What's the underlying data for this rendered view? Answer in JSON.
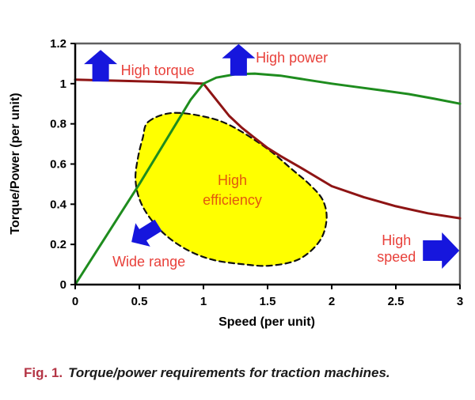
{
  "figure": {
    "caption_label": "Fig. 1.",
    "caption_text": "Torque/power requirements for traction machines."
  },
  "colors": {
    "torque_curve": "#8e1414",
    "power_curve": "#1e8c1e",
    "arrow_blue": "#1616dd",
    "label_red": "#e8403a",
    "efficiency_orange": "#e2580e",
    "region_yellow": "#ffff00",
    "region_outline": "#111111",
    "axis": "#000000",
    "frame": "#606060",
    "caption_red": "#b43545"
  },
  "chart_data": {
    "type": "line",
    "title": "",
    "xlabel": "Speed (per unit)",
    "ylabel": "Torque/Power (per unit)",
    "xlim": [
      0,
      3
    ],
    "ylim": [
      0,
      1.2
    ],
    "grid": false,
    "legend": "none",
    "xticks": [
      0,
      0.5,
      1,
      1.5,
      2,
      2.5,
      3
    ],
    "xtick_labels": [
      "0",
      "0.5",
      "1",
      "1.5",
      "2",
      "2.5",
      "3"
    ],
    "yticks": [
      0,
      0.2,
      0.4,
      0.6,
      0.8,
      1,
      1.2
    ],
    "ytick_labels": [
      "0",
      "0.2",
      "0.4",
      "0.6",
      "0.8",
      "1",
      "1.2"
    ],
    "series": [
      {
        "name": "torque",
        "color": "#8e1414",
        "points": [
          [
            0,
            1.02
          ],
          [
            0.3,
            1.015
          ],
          [
            0.6,
            1.01
          ],
          [
            0.85,
            1.005
          ],
          [
            1.0,
            1.0
          ],
          [
            1.1,
            0.92
          ],
          [
            1.2,
            0.84
          ],
          [
            1.3,
            0.78
          ],
          [
            1.4,
            0.73
          ],
          [
            1.5,
            0.68
          ],
          [
            1.6,
            0.64
          ],
          [
            1.75,
            0.585
          ],
          [
            2.0,
            0.49
          ],
          [
            2.25,
            0.435
          ],
          [
            2.5,
            0.39
          ],
          [
            2.75,
            0.355
          ],
          [
            3.0,
            0.33
          ]
        ]
      },
      {
        "name": "power",
        "color": "#1e8c1e",
        "points": [
          [
            0,
            0
          ],
          [
            0.5,
            0.5
          ],
          [
            0.9,
            0.92
          ],
          [
            1.0,
            1.0
          ],
          [
            1.1,
            1.03
          ],
          [
            1.25,
            1.047
          ],
          [
            1.4,
            1.05
          ],
          [
            1.6,
            1.04
          ],
          [
            1.8,
            1.02
          ],
          [
            2.0,
            1.0
          ],
          [
            2.2,
            0.983
          ],
          [
            2.4,
            0.966
          ],
          [
            2.6,
            0.948
          ],
          [
            2.8,
            0.925
          ],
          [
            3.0,
            0.9
          ]
        ]
      }
    ],
    "high_efficiency_region": {
      "fill": "#ffff00",
      "outline_unit_points": [
        [
          0.57,
          0.81
        ],
        [
          0.755,
          0.854
        ],
        [
          1.02,
          0.834
        ],
        [
          1.225,
          0.787
        ],
        [
          1.497,
          0.677
        ],
        [
          1.682,
          0.578
        ],
        [
          1.825,
          0.5
        ],
        [
          1.93,
          0.421
        ],
        [
          1.96,
          0.323
        ],
        [
          1.905,
          0.216
        ],
        [
          1.744,
          0.126
        ],
        [
          1.515,
          0.094
        ],
        [
          1.3,
          0.102
        ],
        [
          1.082,
          0.122
        ],
        [
          0.897,
          0.165
        ],
        [
          0.724,
          0.236
        ],
        [
          0.588,
          0.327
        ],
        [
          0.501,
          0.425
        ],
        [
          0.47,
          0.527
        ],
        [
          0.489,
          0.63
        ],
        [
          0.526,
          0.728
        ]
      ]
    },
    "annotations": [
      {
        "id": "high-torque",
        "color": "#e8403a",
        "lines": [
          {
            "text": "High torque",
            "x": 0.643,
            "y": 1.066
          }
        ],
        "arrow": {
          "tip": [
            0.198,
            1.168
          ],
          "rot": 0,
          "len": 40,
          "headLen": 18,
          "headW": 42,
          "stemW": 21
        }
      },
      {
        "id": "high-power",
        "color": "#e8403a",
        "lines": [
          {
            "text": "High power",
            "x": 1.689,
            "y": 1.129
          }
        ],
        "arrow": {
          "tip": [
            1.274,
            1.197
          ],
          "rot": 0,
          "len": 40,
          "headLen": 18,
          "headW": 42,
          "stemW": 21
        }
      },
      {
        "id": "high-efficiency",
        "color": "#e2580e",
        "lines": [
          {
            "text": "High",
            "x": 1.225,
            "y": 0.519
          },
          {
            "text": "efficiency",
            "x": 1.225,
            "y": 0.421
          }
        ]
      },
      {
        "id": "wide-range",
        "color": "#e8403a",
        "lines": [
          {
            "text": "Wide range",
            "x": 0.575,
            "y": 0.114
          }
        ],
        "arrow": {
          "tip": [
            0.439,
            0.212
          ],
          "rot": 238,
          "len": 40,
          "headLen": 17,
          "headW": 35,
          "stemW": 17
        }
      },
      {
        "id": "high-speed",
        "color": "#e8403a",
        "lines": [
          {
            "text": "High",
            "x": 2.505,
            "y": 0.22
          },
          {
            "text": "speed",
            "x": 2.505,
            "y": 0.138
          }
        ],
        "arrow": {
          "tip": [
            2.995,
            0.169
          ],
          "rot": 90,
          "len": 46,
          "headLen": 22,
          "headW": 46,
          "stemW": 26
        }
      }
    ]
  }
}
